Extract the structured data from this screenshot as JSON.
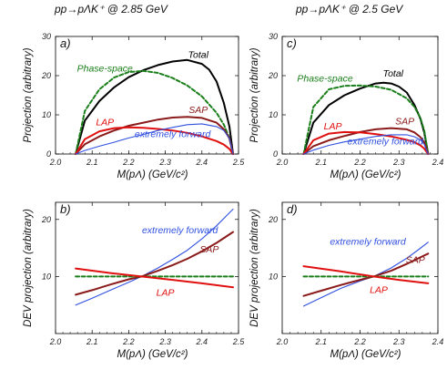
{
  "header": {
    "left_title": "pp→pΛK⁺ @ 2.85 GeV",
    "right_title": "pp→pΛK⁺ @ 2.5 GeV"
  },
  "colors": {
    "total": "#000000",
    "phase_space": "#1a7f1a",
    "sap": "#8b1a1a",
    "lap": "#e01010",
    "extremely_forward": "#3050e0"
  },
  "chart_data": [
    {
      "panel": "a)",
      "type": "line",
      "xlabel": "M(pΛ)   (GeV/c²)",
      "ylabel": "Projection (arbitrary)",
      "xlim": [
        2.0,
        2.5
      ],
      "ylim": [
        0,
        30
      ],
      "xticks": [
        "2.0",
        "2.1",
        "2.2",
        "2.3",
        "2.4",
        "2.5"
      ],
      "yticks": [
        "0",
        "10",
        "20",
        "30"
      ],
      "series": [
        {
          "name": "Total",
          "style": "total",
          "x": [
            2.055,
            2.08,
            2.12,
            2.16,
            2.2,
            2.24,
            2.28,
            2.32,
            2.36,
            2.4,
            2.42,
            2.44,
            2.46,
            2.475,
            2.485
          ],
          "y": [
            0,
            8.5,
            13.5,
            17,
            19.6,
            21.4,
            22.7,
            23.6,
            24,
            23,
            21.5,
            18.5,
            13,
            7,
            0
          ]
        },
        {
          "name": "Phase-space",
          "style": "phase_space",
          "x": [
            2.055,
            2.08,
            2.12,
            2.16,
            2.2,
            2.24,
            2.28,
            2.32,
            2.36,
            2.4,
            2.44,
            2.46,
            2.475,
            2.485
          ],
          "y": [
            0,
            11,
            16.5,
            19.5,
            20.9,
            21.2,
            20.7,
            19.4,
            17.5,
            14.7,
            10.5,
            7.5,
            4,
            0
          ]
        },
        {
          "name": "SAP",
          "style": "sap",
          "x": [
            2.055,
            2.08,
            2.12,
            2.16,
            2.2,
            2.24,
            2.28,
            2.32,
            2.36,
            2.4,
            2.44,
            2.46,
            2.475,
            2.485
          ],
          "y": [
            0,
            2.5,
            4.5,
            6,
            7.2,
            8,
            8.8,
            9.3,
            9.5,
            9.2,
            8,
            6.3,
            4,
            0
          ]
        },
        {
          "name": "LAP",
          "style": "lap",
          "x": [
            2.055,
            2.08,
            2.12,
            2.16,
            2.2,
            2.24,
            2.28,
            2.32,
            2.36,
            2.4,
            2.44,
            2.46,
            2.475,
            2.485
          ],
          "y": [
            0,
            3.8,
            5.8,
            6.6,
            6.8,
            6.7,
            6.4,
            6,
            5.4,
            4.5,
            3.3,
            2.4,
            1.3,
            0
          ]
        },
        {
          "name": "extremely forward",
          "style": "extremely_forward",
          "x": [
            2.055,
            2.08,
            2.12,
            2.16,
            2.2,
            2.24,
            2.28,
            2.32,
            2.36,
            2.4,
            2.44,
            2.46,
            2.475,
            2.485
          ],
          "y": [
            0,
            0.9,
            2,
            3,
            4.1,
            5,
            6,
            6.8,
            7.5,
            7.7,
            7,
            6,
            4,
            0
          ]
        }
      ],
      "annotations": [
        {
          "text": "Total",
          "x": 2.39,
          "y": 24.5,
          "style": "total"
        },
        {
          "text": "Phase-space",
          "x": 2.135,
          "y": 21,
          "style": "phase_space"
        },
        {
          "text": "SAP",
          "x": 2.39,
          "y": 10.5,
          "style": "sap"
        },
        {
          "text": "LAP",
          "x": 2.135,
          "y": 7.3,
          "style": "lap"
        },
        {
          "text": "extremely forward",
          "x": 2.32,
          "y": 4.3,
          "style": "extremely_forward"
        }
      ]
    },
    {
      "panel": "b)",
      "type": "line",
      "xlabel": "M(pΛ)   (GeV/c²)",
      "ylabel": "DEV projection (arbitrary)",
      "xlim": [
        2.0,
        2.5
      ],
      "ylim": [
        0,
        23
      ],
      "xticks": [
        "2.0",
        "2.1",
        "2.2",
        "2.3",
        "2.4",
        "2.5"
      ],
      "yticks": [
        "10",
        "20"
      ],
      "series": [
        {
          "name": "extremely forward",
          "style": "extremely_forward",
          "x": [
            2.055,
            2.1,
            2.15,
            2.2,
            2.235,
            2.28,
            2.32,
            2.36,
            2.4,
            2.44,
            2.485
          ],
          "y": [
            5,
            6.2,
            7.6,
            9,
            10,
            11.5,
            13,
            14.6,
            16.6,
            18.9,
            21.8
          ]
        },
        {
          "name": "SAP",
          "style": "sap",
          "x": [
            2.055,
            2.1,
            2.15,
            2.2,
            2.235,
            2.28,
            2.32,
            2.36,
            2.4,
            2.44,
            2.485
          ],
          "y": [
            6.8,
            7.6,
            8.6,
            9.5,
            10,
            11,
            12,
            13.1,
            14.4,
            15.9,
            17.8
          ]
        },
        {
          "name": "Phase-space",
          "style": "phase_space",
          "x": [
            2.055,
            2.485
          ],
          "y": [
            10,
            10
          ]
        },
        {
          "name": "LAP",
          "style": "lap",
          "x": [
            2.055,
            2.15,
            2.235,
            2.32,
            2.4,
            2.485
          ],
          "y": [
            11.4,
            10.6,
            10,
            9.4,
            8.8,
            8.1
          ]
        }
      ],
      "annotations": [
        {
          "text": "extremely forward",
          "x": 2.34,
          "y": 17.6,
          "style": "extremely_forward"
        },
        {
          "text": "SAP",
          "x": 2.42,
          "y": 14.2,
          "style": "sap"
        },
        {
          "text": "LAP",
          "x": 2.3,
          "y": 6.6,
          "style": "lap"
        }
      ]
    },
    {
      "panel": "c)",
      "type": "line",
      "xlabel": "M(pΛ)   (GeV/c²)",
      "ylabel": "Projection (arbitrary)",
      "xlim": [
        2.0,
        2.4
      ],
      "ylim": [
        0,
        30
      ],
      "xticks": [
        "2.0",
        "2.1",
        "2.2",
        "2.3",
        "2.4"
      ],
      "yticks": [
        "0",
        "10",
        "20",
        "30"
      ],
      "series": [
        {
          "name": "Total",
          "style": "total",
          "x": [
            2.055,
            2.08,
            2.12,
            2.16,
            2.2,
            2.24,
            2.26,
            2.28,
            2.3,
            2.32,
            2.34,
            2.355,
            2.365,
            2.375
          ],
          "y": [
            0,
            8,
            12.5,
            15,
            16.7,
            18,
            18.2,
            18,
            17.2,
            15.7,
            12.5,
            9,
            5.5,
            0
          ]
        },
        {
          "name": "Phase-space",
          "style": "phase_space",
          "x": [
            2.055,
            2.08,
            2.12,
            2.16,
            2.2,
            2.24,
            2.28,
            2.32,
            2.34,
            2.355,
            2.365,
            2.375
          ],
          "y": [
            0,
            12,
            16.5,
            17.4,
            17.5,
            17.2,
            16.4,
            14.2,
            12,
            9.2,
            6,
            0
          ]
        },
        {
          "name": "SAP",
          "style": "sap",
          "x": [
            2.055,
            2.08,
            2.12,
            2.16,
            2.2,
            2.24,
            2.28,
            2.32,
            2.34,
            2.355,
            2.365,
            2.375
          ],
          "y": [
            0,
            2,
            3.5,
            4.6,
            5.6,
            6.3,
            6.6,
            6.3,
            5.5,
            4.3,
            3,
            0
          ]
        },
        {
          "name": "LAP",
          "style": "lap",
          "x": [
            2.055,
            2.08,
            2.12,
            2.16,
            2.2,
            2.24,
            2.28,
            2.32,
            2.34,
            2.355,
            2.365,
            2.375
          ],
          "y": [
            0,
            3.5,
            5.2,
            5.6,
            5.5,
            5.1,
            4.5,
            3.6,
            3,
            2.2,
            1.4,
            0
          ]
        },
        {
          "name": "extremely forward",
          "style": "extremely_forward",
          "x": [
            2.055,
            2.08,
            2.12,
            2.16,
            2.2,
            2.24,
            2.28,
            2.32,
            2.34,
            2.355,
            2.365,
            2.375
          ],
          "y": [
            0,
            1,
            2.2,
            3.1,
            3.8,
            4.5,
            4.9,
            4.9,
            4.4,
            3.6,
            2.5,
            0
          ]
        }
      ],
      "annotations": [
        {
          "text": "Total",
          "x": 2.285,
          "y": 19.8,
          "style": "total"
        },
        {
          "text": "Phase-space",
          "x": 2.11,
          "y": 18.5,
          "style": "phase_space"
        },
        {
          "text": "SAP",
          "x": 2.315,
          "y": 7.6,
          "style": "sap"
        },
        {
          "text": "LAP",
          "x": 2.13,
          "y": 6.3,
          "style": "lap"
        },
        {
          "text": "extremely forward",
          "x": 2.265,
          "y": 2.4,
          "style": "extremely_forward"
        }
      ]
    },
    {
      "panel": "d)",
      "type": "line",
      "xlabel": "M(pΛ)   (GeV/c²)",
      "ylabel": "DEV projection (arbitrary)",
      "xlim": [
        2.0,
        2.4
      ],
      "ylim": [
        0,
        23
      ],
      "xticks": [
        "2.0",
        "2.1",
        "2.2",
        "2.3",
        "2.4"
      ],
      "yticks": [
        "10",
        "20"
      ],
      "series": [
        {
          "name": "extremely forward",
          "style": "extremely_forward",
          "x": [
            2.055,
            2.1,
            2.15,
            2.2,
            2.235,
            2.28,
            2.32,
            2.35,
            2.375
          ],
          "y": [
            4.8,
            6.3,
            7.9,
            9.2,
            10,
            11.5,
            13.2,
            14.7,
            16
          ]
        },
        {
          "name": "SAP",
          "style": "sap",
          "x": [
            2.055,
            2.1,
            2.15,
            2.2,
            2.235,
            2.28,
            2.32,
            2.35,
            2.375
          ],
          "y": [
            6.6,
            7.5,
            8.5,
            9.4,
            10,
            11,
            12.2,
            13.2,
            14
          ]
        },
        {
          "name": "Phase-space",
          "style": "phase_space",
          "x": [
            2.055,
            2.375
          ],
          "y": [
            10,
            10
          ]
        },
        {
          "name": "LAP",
          "style": "lap",
          "x": [
            2.055,
            2.15,
            2.235,
            2.3,
            2.375
          ],
          "y": [
            11.8,
            10.9,
            10,
            9.4,
            8.8
          ]
        }
      ],
      "annotations": [
        {
          "text": "extremely forward",
          "x": 2.22,
          "y": 15.6,
          "style": "extremely_forward"
        },
        {
          "text": "SAP",
          "x": 2.342,
          "y": 12.4,
          "style": "sap"
        },
        {
          "text": "LAP",
          "x": 2.248,
          "y": 7.1,
          "style": "lap"
        }
      ]
    }
  ]
}
